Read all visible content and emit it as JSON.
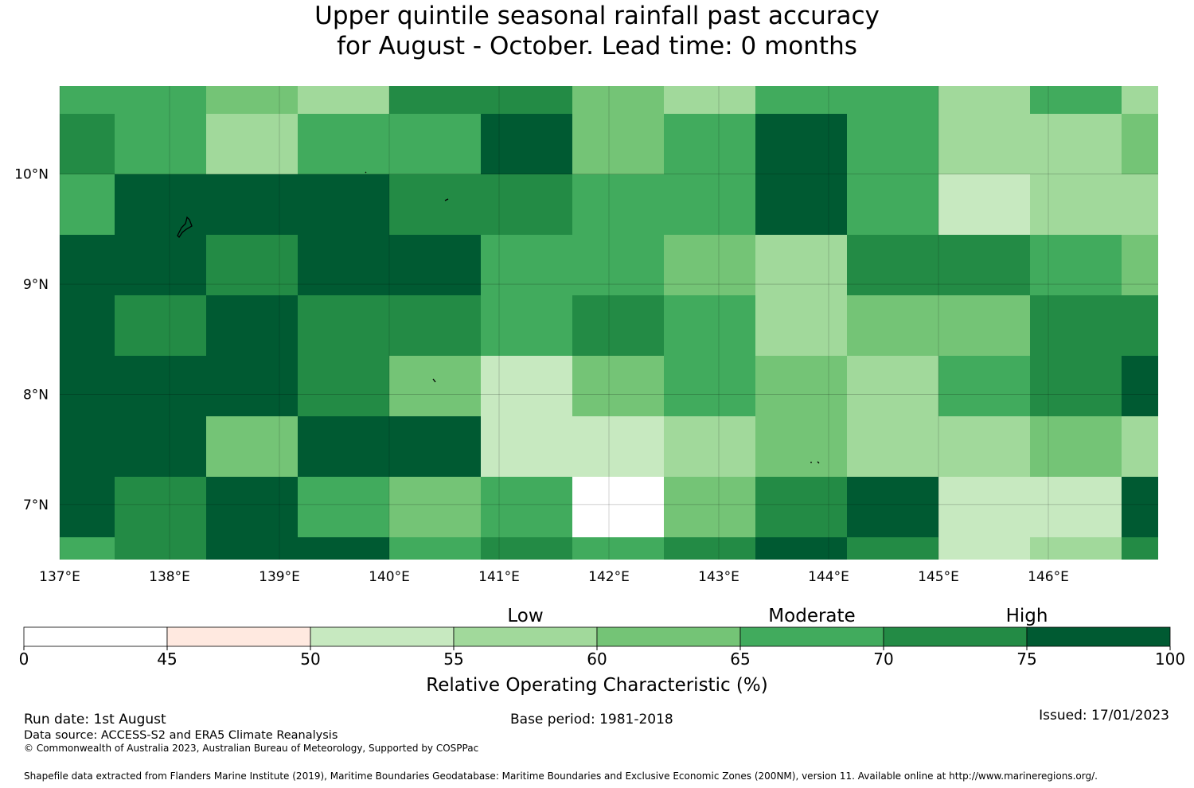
{
  "title": {
    "line1": "Upper quintile seasonal rainfall past accuracy",
    "line2": "for August - October. Lead time: 0 months"
  },
  "map": {
    "lon_labels": [
      "137°E",
      "138°E",
      "139°E",
      "140°E",
      "141°E",
      "142°E",
      "143°E",
      "144°E",
      "145°E",
      "146°E"
    ],
    "lat_labels": [
      "10°N",
      "9°N",
      "8°N",
      "7°N"
    ],
    "lon_range": [
      137.0,
      147.0
    ],
    "lat_range": [
      6.5,
      10.8
    ],
    "grid_lines": true,
    "cell_classes_note_rows_north_to_south": true,
    "lon_edges": [
      137.0,
      137.5,
      138.33,
      139.17,
      140.0,
      140.83,
      141.67,
      142.5,
      143.33,
      144.17,
      145.0,
      145.83,
      146.67,
      147.0
    ],
    "lat_edges": [
      10.8,
      10.55,
      10.0,
      9.45,
      8.9,
      8.35,
      7.8,
      7.25,
      6.7,
      6.5
    ],
    "cells": [
      [
        5,
        5,
        4,
        3,
        6,
        6,
        4,
        3,
        5,
        5,
        3,
        5,
        3
      ],
      [
        6,
        5,
        3,
        5,
        5,
        7,
        4,
        5,
        7,
        5,
        3,
        3,
        4
      ],
      [
        5,
        7,
        7,
        7,
        6,
        6,
        5,
        5,
        7,
        5,
        2,
        3,
        3
      ],
      [
        7,
        7,
        6,
        7,
        7,
        5,
        5,
        4,
        3,
        6,
        6,
        5,
        4
      ],
      [
        7,
        6,
        7,
        6,
        6,
        5,
        6,
        5,
        3,
        4,
        4,
        6,
        6
      ],
      [
        7,
        7,
        7,
        6,
        4,
        2,
        4,
        5,
        4,
        3,
        5,
        6,
        7
      ],
      [
        7,
        7,
        4,
        7,
        7,
        2,
        2,
        3,
        4,
        3,
        3,
        4,
        3
      ],
      [
        7,
        6,
        7,
        5,
        4,
        5,
        0,
        4,
        6,
        7,
        2,
        2,
        7
      ],
      [
        5,
        6,
        7,
        7,
        5,
        6,
        5,
        6,
        7,
        6,
        2,
        3,
        6
      ]
    ]
  },
  "legend": {
    "categories": [
      "Low",
      "Moderate",
      "High"
    ],
    "ticks": [
      "0",
      "45",
      "50",
      "55",
      "60",
      "65",
      "70",
      "75",
      "100"
    ],
    "colors": [
      "#ffffff",
      "#ffe9e0",
      "#c7e9c0",
      "#a1d99b",
      "#74c476",
      "#41ab5d",
      "#238b45",
      "#005a32"
    ],
    "xlabel": "Relative Operating Characteristic (%)"
  },
  "footer": {
    "run_date": "Run date: 1st August",
    "base_period": "Base period: 1981-2018",
    "issued": "Issued: 17/01/2023",
    "data_source": "Data source: ACCESS-S2 and ERA5 Climate Reanalysis",
    "copyright": "© Commonwealth of Australia 2023, Australian Bureau of Meteorology, Supported by COSPPac",
    "shapefile": "Shapefile data extracted from Flanders Marine Institute (2019), Maritime Boundaries Geodatabase: Maritime Boundaries and Exclusive Economic Zones (200NM), version 11. Available online at http://www.marineregions.org/."
  }
}
